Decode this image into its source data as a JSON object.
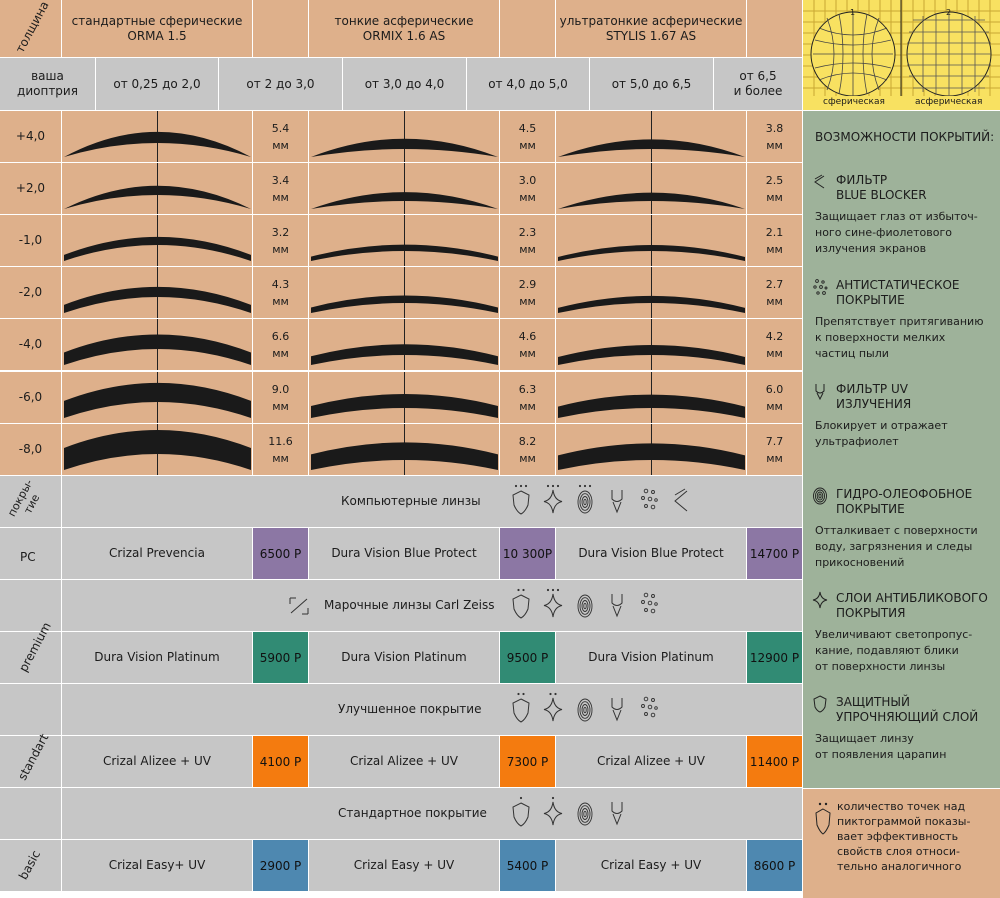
{
  "header": {
    "thickness_label": "толщина",
    "diopter_label": "ваша\nдиоптрия",
    "lens_types": [
      {
        "line1": "стандартные сферические",
        "line2": "ORMA 1.5"
      },
      {
        "line1": "тонкие асферические",
        "line2": "ORMIX 1.6 AS"
      },
      {
        "line1": "ультратонкие асферические",
        "line2": "STYLIS 1.67 AS"
      }
    ],
    "diopter_ranges": [
      "от 0,25 до 2,0",
      "от 2 до 3,0",
      "от 3,0 до 4,0",
      "от 4,0 до 5,0",
      "от 5,0 до 6,5",
      "от 6,5\nи более"
    ]
  },
  "diagram": {
    "label_1": "1",
    "label_2": "2",
    "caption_1": "сферическая",
    "caption_2": "асферическая"
  },
  "rows": [
    {
      "diopter": "+4,0",
      "thick": [
        "5.4",
        "4.5",
        "3.8"
      ]
    },
    {
      "diopter": "+2,0",
      "thick": [
        "3.4",
        "3.0",
        "2.5"
      ]
    },
    {
      "diopter": "-1,0",
      "thick": [
        "3.2",
        "2.3",
        "2.1"
      ]
    },
    {
      "diopter": "-2,0",
      "thick": [
        "4.3",
        "2.9",
        "2.7"
      ]
    },
    {
      "diopter": "-4,0",
      "thick": [
        "6.6",
        "4.6",
        "4.2"
      ]
    },
    {
      "diopter": "-6,0",
      "thick": [
        "9.0",
        "6.3",
        "6.0"
      ]
    },
    {
      "diopter": "-8,0",
      "thick": [
        "11.6",
        "8.2",
        "7.7"
      ]
    }
  ],
  "unit_mm": "мм",
  "coatings_label": "покры-\nтие",
  "sections": [
    {
      "title": "Компьютерные линзы",
      "tier": "PC",
      "products": [
        "Crizal Prevencia",
        "Dura Vision Blue Protect",
        "Dura Vision Blue Protect"
      ],
      "prices": [
        "6500 Р",
        "10 300Р",
        "14700 Р"
      ],
      "price_color": "#8c77a4"
    },
    {
      "title": "Марочные линзы Carl Zeiss",
      "tier": "premium",
      "products": [
        "Dura Vision Platinum",
        "Dura Vision Platinum",
        "Dura Vision Platinum"
      ],
      "prices": [
        "5900 Р",
        "9500 Р",
        "12900 Р"
      ],
      "price_color": "#318b74"
    },
    {
      "title": "Улучшенное покрытие",
      "tier": "standart",
      "products": [
        "Crizal Alizee + UV",
        "Crizal Alizee + UV",
        "Crizal Alizee + UV"
      ],
      "prices": [
        "4100 Р",
        "7300 Р",
        "11400 Р"
      ],
      "price_color": "#f47b0f"
    },
    {
      "title": "Стандартное покрытие",
      "tier": "basic",
      "products": [
        "Crizal Easy+ UV",
        "Crizal Easy + UV",
        "Crizal Easy + UV"
      ],
      "prices": [
        "2900 Р",
        "5400 Р",
        "8600 Р"
      ],
      "price_color": "#4e88b0"
    }
  ],
  "panel": {
    "heading": "ВОЗМОЖНОСТИ ПОКРЫТИЙ:",
    "items": [
      {
        "title": "ФИЛЬТР\nBLUE BLOCKER",
        "desc": "Защищает глаз от избыточ-\nного сине-фиолетового\nизлучения экранов",
        "icon": "blue-blocker-icon"
      },
      {
        "title": "АНТИСТАТИЧЕСКОЕ\nПОКРЫТИЕ",
        "desc": "Препятствует притягиванию\nк поверхности мелких\nчастиц пыли",
        "icon": "antistatic-icon"
      },
      {
        "title": "ФИЛЬТР UV\nИЗЛУЧЕНИЯ",
        "desc": "Блокирует и отражает\nультрафиолет",
        "icon": "uv-filter-icon"
      },
      {
        "title": "ГИДРО-ОЛЕОФОБНОЕ\nПОКРЫТИЕ",
        "desc": "Отталкивает с поверхности\nводу, загрязнения и следы\nприкосновений",
        "icon": "fingerprint-icon"
      },
      {
        "title": "СЛОИ АНТИБЛИКОВОГО\nПОКРЫТИЯ",
        "desc": "Увеличивают светопропус-\nкание, подавляют блики\nот поверхности линзы",
        "icon": "sparkle-icon"
      },
      {
        "title": "ЗАЩИТНЫЙ\nУПРОЧНЯЮЩИЙ СЛОЙ",
        "desc": "Защищает линзу\nот появления царапин",
        "icon": "shield-icon"
      }
    ],
    "note": "количество точек над\nпиктограммой показы-\nвает эффективность\nсвойств слоя относи-\nтельно аналогичного"
  }
}
